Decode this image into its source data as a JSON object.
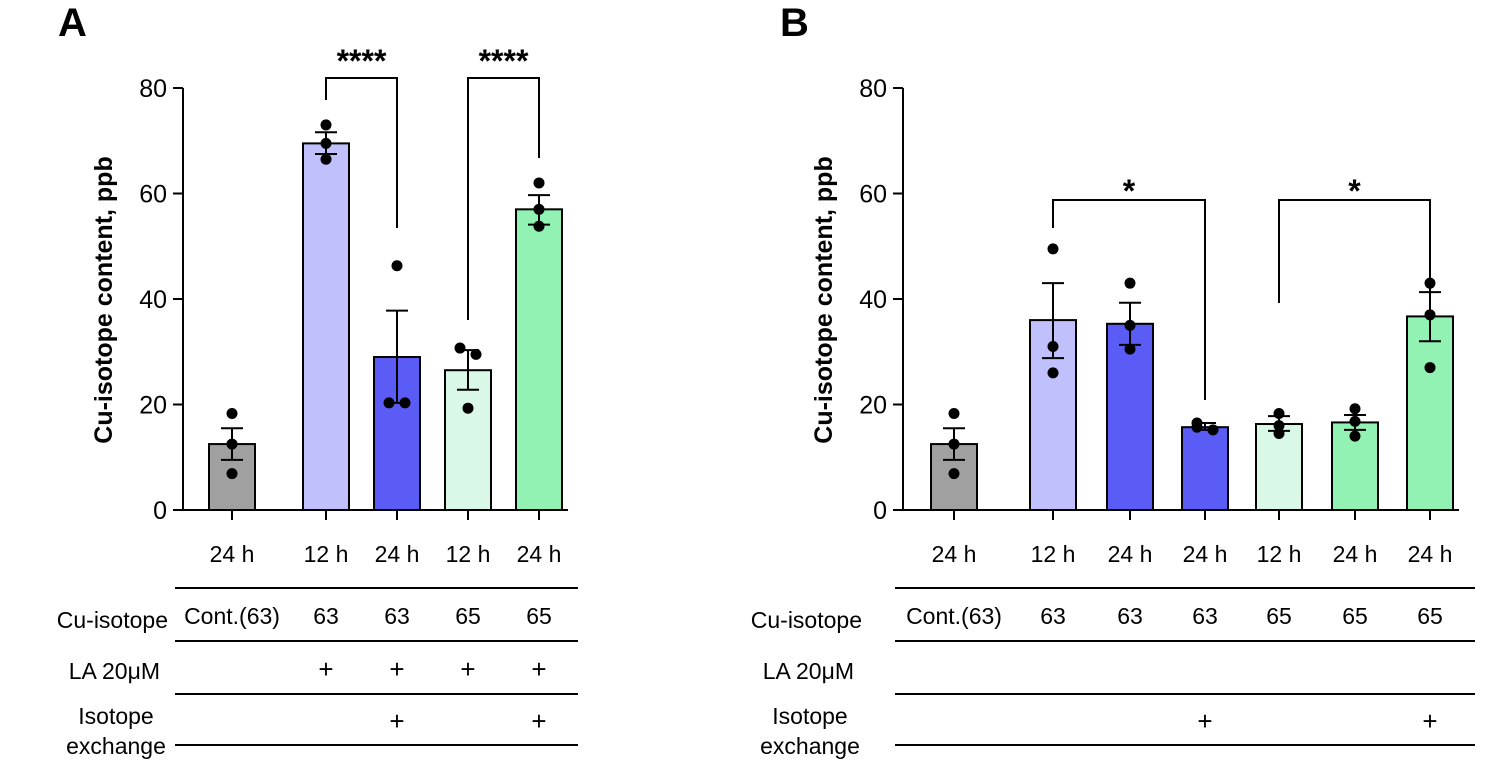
{
  "colors": {
    "gray": "#a0a0a0",
    "lightblue": "#c0c0fd",
    "blue": "#5a5cf5",
    "lightgreen": "#d9f8e8",
    "green": "#92f2b4"
  },
  "chart_data": [
    {
      "type": "bar",
      "panel": "A",
      "ylabel": "Cu-isotope content, ppb",
      "ylim": [
        0,
        80
      ],
      "yticks": [
        0,
        20,
        40,
        60,
        80
      ],
      "categories": [
        "24 h",
        "12 h",
        "24 h",
        "12 h",
        "24 h"
      ],
      "values": [
        12.5,
        69.5,
        29,
        26.5,
        57
      ],
      "err_low": [
        9.5,
        67.5,
        20.3,
        22.8,
        54.1
      ],
      "err_high": [
        15.5,
        71.6,
        37.8,
        30.3,
        59.7
      ],
      "points": [
        [
          18.3,
          12.5,
          6.9
        ],
        [
          73,
          69.5,
          66.5
        ],
        [
          46.3,
          20.3,
          20.3
        ],
        [
          30.7,
          29.5,
          19.3
        ],
        [
          62,
          57,
          53.8
        ]
      ],
      "fill": [
        "gray",
        "lightblue",
        "blue",
        "lightgreen",
        "green"
      ],
      "table": {
        "row_labels": [
          "Cu-isotope",
          "LA 20μM",
          "Isotope",
          "exchange"
        ],
        "cu_isotope": [
          "Cont.(63)",
          "63",
          "63",
          "65",
          "65"
        ],
        "la": [
          "",
          "+",
          "+",
          "+",
          "+"
        ],
        "exchange": [
          "",
          "",
          "+",
          "",
          "+"
        ]
      },
      "significance": [
        {
          "from": 1,
          "to": 2,
          "label": "****"
        },
        {
          "from": 3,
          "to": 4,
          "label": "****"
        }
      ]
    },
    {
      "type": "bar",
      "panel": "B",
      "ylabel": "Cu-isotope content, ppb",
      "ylim": [
        0,
        80
      ],
      "yticks": [
        0,
        20,
        40,
        60,
        80
      ],
      "categories": [
        "24 h",
        "12 h",
        "24 h",
        "24 h",
        "12 h",
        "24 h",
        "24 h"
      ],
      "values": [
        12.5,
        36,
        35.3,
        15.7,
        16.3,
        16.6,
        36.7
      ],
      "err_low": [
        9.5,
        28.8,
        31.3,
        15.2,
        15.0,
        15.2,
        32.0
      ],
      "err_high": [
        15.5,
        43,
        39.3,
        16.5,
        17.8,
        18.0,
        41.3
      ],
      "points": [
        [
          18.3,
          12.5,
          6.9
        ],
        [
          49.5,
          31,
          26
        ],
        [
          43,
          35,
          30.5
        ],
        [
          16.5,
          15.7,
          15.2
        ],
        [
          18.3,
          16,
          14.5
        ],
        [
          19.2,
          16.8,
          14
        ],
        [
          43,
          37,
          27
        ]
      ],
      "fill": [
        "gray",
        "lightblue",
        "blue",
        "blue",
        "lightgreen",
        "green",
        "green"
      ],
      "table": {
        "row_labels": [
          "Cu-isotope",
          "LA 20μM",
          "Isotope",
          "exchange"
        ],
        "cu_isotope": [
          "Cont.(63)",
          "63",
          "63",
          "63",
          "65",
          "65",
          "65"
        ],
        "la": [
          "",
          "",
          "",
          "",
          "",
          "",
          ""
        ],
        "exchange": [
          "",
          "",
          "",
          "+",
          "",
          "",
          "+"
        ]
      },
      "significance": [
        {
          "from": 1,
          "to": 3,
          "label": "*"
        },
        {
          "from": 4,
          "to": 6,
          "label": "*"
        }
      ]
    }
  ]
}
